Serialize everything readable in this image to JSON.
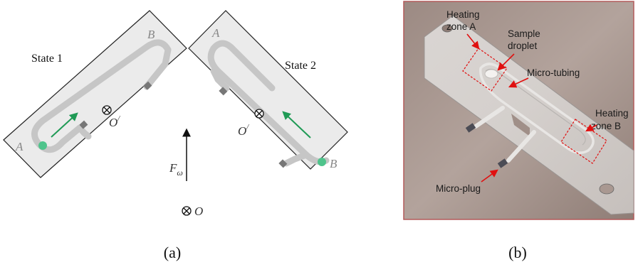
{
  "panel_a": {
    "state1_label": "State 1",
    "state2_label": "State 2",
    "point_A": "A",
    "point_B": "B",
    "center_local": "O",
    "center_local_mark": "/",
    "center_global": "O",
    "force_symbol": "F",
    "force_subscript": "ω",
    "caption": "(a)"
  },
  "panel_b": {
    "labels": {
      "heating_zone_a_line1": "Heating",
      "heating_zone_a_line2": "zone A",
      "sample_line1": "Sample",
      "sample_line2": "droplet",
      "micro_tubing": "Micro-tubing",
      "heating_zone_b_line1": "Heating",
      "heating_zone_b_line2": "zone B",
      "micro_plug": "Micro-plug"
    },
    "caption": "(b)"
  },
  "colors": {
    "tube": "#c6c6c6",
    "droplet": "#4fc48c",
    "arrow_green": "#1f9a55",
    "photo_border": "#b35a5a",
    "annotation_red": "#e01010"
  }
}
